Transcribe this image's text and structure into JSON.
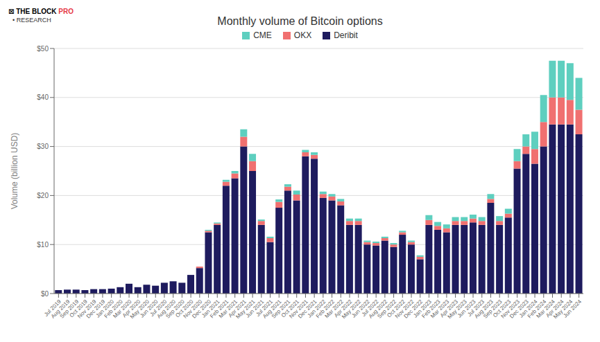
{
  "chart_data": {
    "type": "bar",
    "title": "Monthly volume of Bitcoin options",
    "ylabel": "Volume (billion USD)",
    "annotations": [
      "⊠ THE BLOCK",
      "PRO",
      "• RESEARCH"
    ],
    "stacked": true,
    "grid": true,
    "legend": "top",
    "categories": [
      "Jul 2019",
      "Aug 2019",
      "Sep 2019",
      "Oct 2019",
      "Nov 2019",
      "Dec 2019",
      "Jan 2020",
      "Feb 2020",
      "Mar 2020",
      "Apr 2020",
      "May 2020",
      "Jun 2020",
      "Jul 2020",
      "Aug 2020",
      "Sep 2020",
      "Oct 2020",
      "Nov 2020",
      "Dec 2020",
      "Jan 2021",
      "Feb 2021",
      "Mar 2021",
      "Apr 2021",
      "May 2021",
      "Jun 2021",
      "Jul 2021",
      "Aug 2021",
      "Sep 2021",
      "Oct 2021",
      "Nov 2021",
      "Dec 2021",
      "Jan 2022",
      "Feb 2022",
      "Mar 2022",
      "Apr 2022",
      "May 2022",
      "Jun 2022",
      "Jul 2022",
      "Aug 2022",
      "Sep 2022",
      "Oct 2022",
      "Nov 2022",
      "Dec 2022",
      "Jan 2023",
      "Feb 2023",
      "Mar 2023",
      "Apr 2023",
      "May 2023",
      "Jun 2023",
      "Jul 2023",
      "Aug 2023",
      "Sep 2023",
      "Oct 2023",
      "Nov 2023",
      "Dec 2023",
      "Jan 2024",
      "Feb 2024",
      "Mar 2024",
      "Apr 2024",
      "May 2024",
      "Jun 2024"
    ],
    "series": [
      {
        "name": "Deribit",
        "color": "#1e1b5e",
        "values": [
          0.7,
          0.8,
          0.8,
          0.7,
          0.9,
          0.9,
          1.0,
          1.3,
          2.0,
          1.3,
          1.8,
          1.6,
          2.2,
          2.5,
          2.2,
          3.8,
          5.2,
          12.5,
          14.0,
          22.0,
          23.5,
          30.0,
          25.0,
          14.0,
          10.5,
          17.5,
          21.0,
          19.0,
          28.0,
          27.5,
          19.5,
          19.0,
          18.0,
          14.0,
          14.0,
          10.0,
          9.8,
          10.8,
          9.5,
          12.0,
          10.0,
          7.0,
          14.0,
          13.0,
          12.5,
          14.0,
          14.0,
          14.5,
          14.0,
          18.5,
          14.0,
          15.5,
          25.5,
          28.5,
          26.5,
          30.0,
          34.5,
          34.5,
          34.5,
          32.5
        ]
      },
      {
        "name": "OKX",
        "color": "#f07070",
        "values": [
          0.0,
          0.0,
          0.0,
          0.0,
          0.0,
          0.0,
          0.0,
          0.0,
          0.0,
          0.0,
          0.0,
          0.0,
          0.0,
          0.0,
          0.0,
          0.0,
          0.3,
          0.3,
          0.3,
          0.8,
          1.0,
          2.0,
          2.0,
          0.8,
          0.8,
          1.2,
          0.8,
          1.2,
          0.8,
          0.8,
          0.8,
          0.8,
          0.8,
          0.8,
          0.8,
          0.5,
          0.5,
          0.5,
          0.5,
          0.5,
          0.5,
          0.5,
          1.0,
          0.8,
          0.8,
          0.8,
          0.8,
          0.8,
          0.8,
          0.8,
          0.8,
          0.8,
          1.5,
          1.5,
          3.0,
          5.0,
          5.5,
          5.5,
          5.0,
          5.0
        ]
      },
      {
        "name": "CME",
        "color": "#5ecfbf",
        "values": [
          0.0,
          0.0,
          0.0,
          0.0,
          0.0,
          0.0,
          0.0,
          0.0,
          0.0,
          0.0,
          0.0,
          0.0,
          0.0,
          0.0,
          0.0,
          0.0,
          0.0,
          0.2,
          0.2,
          0.4,
          0.5,
          1.5,
          1.5,
          0.3,
          0.3,
          0.5,
          0.5,
          0.8,
          0.5,
          0.5,
          0.5,
          0.5,
          0.5,
          0.5,
          0.5,
          0.3,
          0.3,
          0.3,
          0.3,
          0.3,
          0.3,
          0.3,
          1.0,
          0.8,
          0.8,
          0.8,
          0.8,
          0.8,
          0.8,
          1.0,
          1.0,
          1.0,
          2.5,
          2.5,
          3.5,
          5.5,
          7.5,
          7.5,
          7.5,
          6.5
        ]
      }
    ],
    "ylim": [
      0,
      50
    ],
    "yticks": [
      {
        "value": 0,
        "label": "$0"
      },
      {
        "value": 10,
        "label": "$10"
      },
      {
        "value": 20,
        "label": "$20"
      },
      {
        "value": 30,
        "label": "$30"
      },
      {
        "value": 40,
        "label": "$40"
      },
      {
        "value": 50,
        "label": "$50"
      }
    ]
  }
}
